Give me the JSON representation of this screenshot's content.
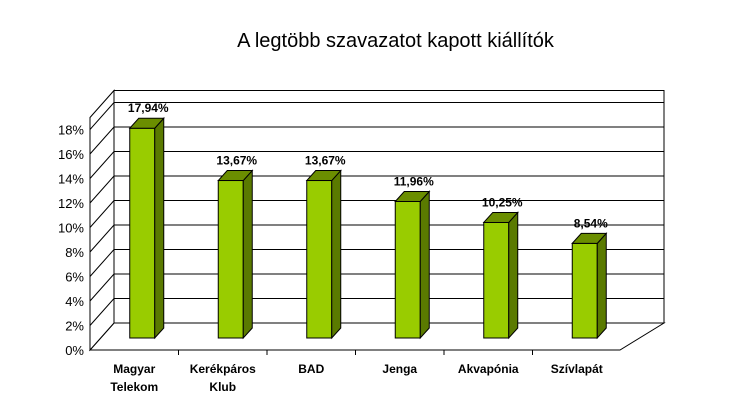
{
  "chart_data": {
    "type": "bar",
    "title": "A legtöbb szavazatot kapott kiállítók",
    "categories": [
      [
        "Magyar",
        "Telekom"
      ],
      [
        "Kerékpáros",
        "Klub"
      ],
      [
        "BAD"
      ],
      [
        "Jenga"
      ],
      [
        "Akvapónia"
      ],
      [
        "Szívlapát"
      ]
    ],
    "values": [
      17.94,
      13.67,
      13.67,
      11.96,
      10.25,
      8.54
    ],
    "data_labels": [
      "17,94%",
      "13,67%",
      "13,67%",
      "11,96%",
      "10,25%",
      "8,54%"
    ],
    "y_ticks": [
      "0%",
      "2%",
      "4%",
      "6%",
      "8%",
      "10%",
      "12%",
      "14%",
      "16%",
      "18%"
    ],
    "ylim": [
      0,
      18
    ],
    "grid": true,
    "legend": "none",
    "colors": {
      "bar_front": "#99cc00",
      "bar_side": "#5a7a00",
      "bar_top": "#6b8e00",
      "grid": "#000000"
    }
  }
}
